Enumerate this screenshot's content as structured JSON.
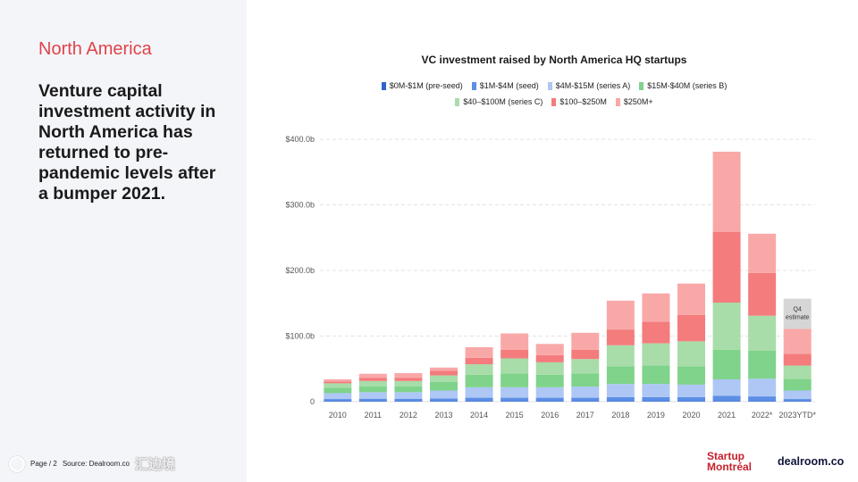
{
  "slide": {
    "region": "North America",
    "headline": "Venture capital investment activity in North America has returned to pre-pandemic levels after a bumper 2021.",
    "footer_page": "Page / 2",
    "footer_source": "Source: Dealroom.co",
    "watermark": "汇边境",
    "logo_startup_line1": "Startup",
    "logo_startup_line2": "Montréal",
    "logo_dealroom": "dealroom.co"
  },
  "chart_data": {
    "type": "bar",
    "stacked": true,
    "title": "VC investment raised by North America HQ startups",
    "xlabel": "",
    "ylabel": "",
    "ylim": [
      0,
      400
    ],
    "yticks": [
      0,
      100,
      200,
      300,
      400
    ],
    "ytick_labels": [
      "0",
      "$100.0b",
      "$200.0b",
      "$300.0b",
      "$400.0b"
    ],
    "grid": true,
    "legend_position": "top-center",
    "categories": [
      "2010",
      "2011",
      "2012",
      "2013",
      "2014",
      "2015",
      "2016",
      "2017",
      "2018",
      "2019",
      "2020",
      "2021",
      "2022*",
      "2023YTD*"
    ],
    "series": [
      {
        "name": "$0M-$1M  (pre-seed)",
        "color": "#2f64cc",
        "values": [
          1,
          1,
          1,
          1,
          1,
          1,
          1,
          1,
          1,
          1,
          1,
          1,
          1,
          1
        ]
      },
      {
        "name": "$1M-$4M (seed)",
        "color": "#5c8ee6",
        "values": [
          3,
          3.5,
          3.5,
          4,
          5,
          5,
          5,
          5,
          6,
          6,
          6,
          8,
          7,
          3
        ]
      },
      {
        "name": "$4M-$15M (series A)",
        "color": "#aec7f5",
        "values": [
          9,
          10,
          10,
          12,
          16,
          16,
          16,
          17,
          20,
          20,
          19,
          25,
          27,
          13
        ]
      },
      {
        "name": "$15M-$40M (series B)",
        "color": "#7fd38a",
        "values": [
          8,
          9,
          9,
          13,
          19,
          21,
          19,
          20,
          27,
          28,
          28,
          45,
          43,
          18
        ]
      },
      {
        "name": "$40–$100M (series C)",
        "color": "#a8dca8",
        "values": [
          7,
          8,
          8,
          10,
          16,
          23,
          19,
          22,
          32,
          34,
          38,
          72,
          53,
          20
        ]
      },
      {
        "name": "$100–$250M",
        "color": "#f47c7c",
        "values": [
          3,
          5,
          5,
          7,
          10,
          13,
          11,
          14,
          24,
          33,
          40,
          108,
          65,
          18
        ]
      },
      {
        "name": "$250M+",
        "color": "#f9a8a8",
        "values": [
          3,
          6,
          7,
          5,
          16,
          25,
          17,
          26,
          44,
          43,
          48,
          122,
          60,
          38
        ]
      }
    ],
    "estimate_annotation": {
      "category": "2023YTD*",
      "label_line1": "Q4",
      "label_line2": "estimate",
      "value": 46,
      "color": "#d6d6d6"
    }
  }
}
